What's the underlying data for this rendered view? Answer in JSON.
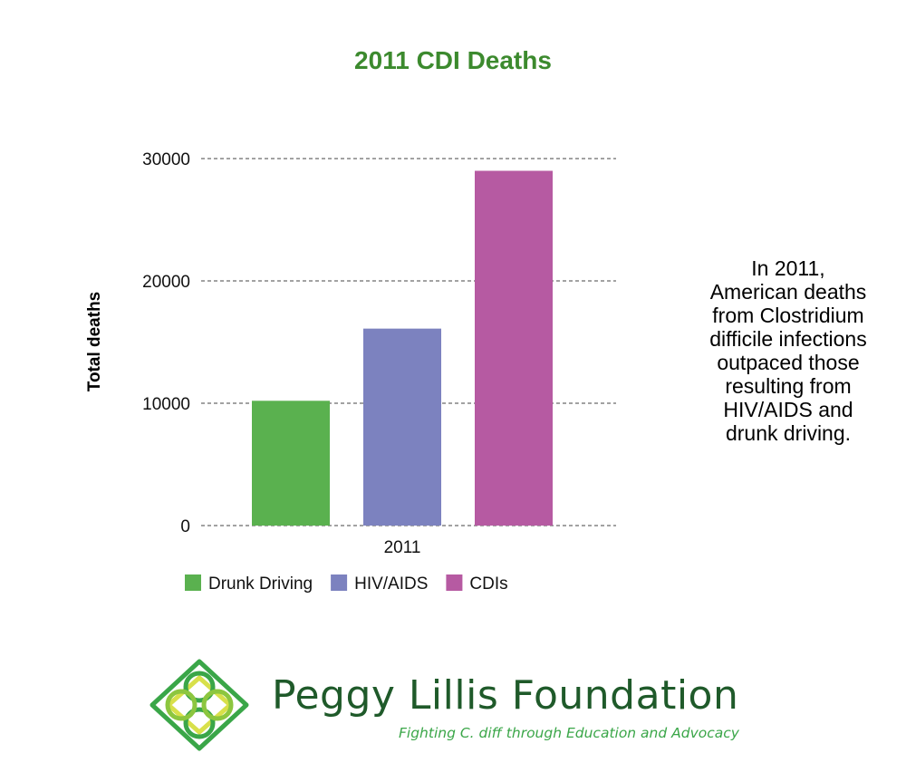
{
  "chart_data": {
    "type": "bar",
    "title": "2011 CDI Deaths",
    "ylabel": "Total deaths",
    "xlabel": "",
    "categories": [
      "2011"
    ],
    "series": [
      {
        "name": "Drunk Driving",
        "color": "#5ab14f",
        "values": [
          10200
        ]
      },
      {
        "name": "HIV/AIDS",
        "color": "#7c82bf",
        "values": [
          16100
        ]
      },
      {
        "name": "CDIs",
        "color": "#b65aa2",
        "values": [
          29000
        ]
      }
    ],
    "yticks": [
      "0",
      "10000",
      "20000",
      "30000"
    ],
    "ylim": [
      0,
      30000
    ],
    "grid": true,
    "legend": "bottom"
  },
  "colors": {
    "title": "#3c8a2e",
    "brand_dark": "#1f5a2a",
    "brand_light": "#3aa648"
  },
  "callout": [
    "In 2011,",
    "American deaths",
    "from Clostridium",
    "difficile infections",
    "outpaced those",
    "resulting from",
    "HIV/AIDS and",
    "drunk driving."
  ],
  "logo": {
    "name": "Peggy Lillis Foundation",
    "tagline": "Fighting C. diff through Education and Advocacy",
    "icon": "celtic-knot-icon"
  }
}
